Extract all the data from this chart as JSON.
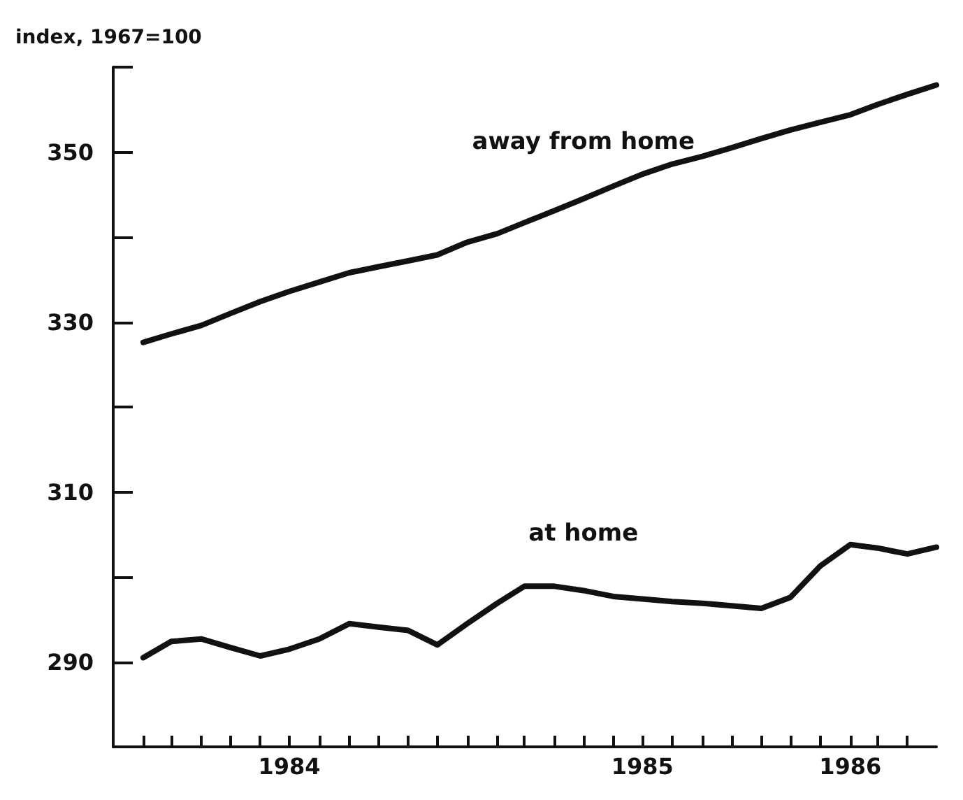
{
  "chart_data": {
    "type": "line",
    "ylabel": "index, 1967=100",
    "x": [
      "1984-02",
      "1984-03",
      "1984-04",
      "1984-05",
      "1984-06",
      "1984-07",
      "1984-08",
      "1984-09",
      "1984-10",
      "1984-11",
      "1984-12",
      "1985-01",
      "1985-02",
      "1985-03",
      "1985-04",
      "1985-05",
      "1985-06",
      "1985-07",
      "1985-08",
      "1985-09",
      "1985-10",
      "1985-11",
      "1985-12",
      "1986-01",
      "1986-02",
      "1986-03",
      "1986-04",
      "1986-05"
    ],
    "series": [
      {
        "name": "away from home",
        "color": "#111111",
        "values": [
          327.6,
          328.6,
          329.6,
          331,
          332.4,
          333.6,
          334.7,
          335.8,
          336.5,
          337.2,
          337.9,
          339.4,
          340.4,
          341.7,
          343.1,
          344.5,
          346,
          347.4,
          348.6,
          349.5,
          350.5,
          351.6,
          352.6,
          353.5,
          354.4,
          355.6,
          356.8,
          357.9
        ]
      },
      {
        "name": "at home",
        "color": "#111111",
        "values": [
          290.5,
          292.4,
          292.7,
          291.7,
          290.7,
          291.5,
          292.7,
          294.5,
          294.1,
          293.7,
          292,
          294.5,
          296.9,
          298.9,
          298.9,
          298.4,
          297.7,
          297.4,
          297.1,
          296.9,
          296.6,
          296.3,
          297.6,
          301.3,
          303.8,
          303.4,
          302.7,
          303.5
        ]
      }
    ],
    "xlim": [
      "1984-01",
      "1986-05"
    ],
    "xticks": [
      {
        "value": "1984-02",
        "label": null
      },
      {
        "value": "1984-03",
        "label": null
      },
      {
        "value": "1984-04",
        "label": null
      },
      {
        "value": "1984-05",
        "label": null
      },
      {
        "value": "1984-06",
        "label": null
      },
      {
        "value": "1984-07",
        "label": "1984"
      },
      {
        "value": "1984-08",
        "label": null
      },
      {
        "value": "1984-09",
        "label": null
      },
      {
        "value": "1984-10",
        "label": null
      },
      {
        "value": "1984-11",
        "label": null
      },
      {
        "value": "1984-12",
        "label": null
      },
      {
        "value": "1985-01",
        "label": null
      },
      {
        "value": "1985-02",
        "label": null
      },
      {
        "value": "1985-03",
        "label": null
      },
      {
        "value": "1985-04",
        "label": null
      },
      {
        "value": "1985-05",
        "label": null
      },
      {
        "value": "1985-06",
        "label": null
      },
      {
        "value": "1985-07",
        "label": "1985"
      },
      {
        "value": "1985-08",
        "label": null
      },
      {
        "value": "1985-09",
        "label": null
      },
      {
        "value": "1985-10",
        "label": null
      },
      {
        "value": "1985-11",
        "label": null
      },
      {
        "value": "1985-12",
        "label": null
      },
      {
        "value": "1986-01",
        "label": null
      },
      {
        "value": "1986-02",
        "label": "1986"
      },
      {
        "value": "1986-03",
        "label": null
      },
      {
        "value": "1986-04",
        "label": null
      }
    ],
    "ylim": [
      280,
      360
    ],
    "yticks": [
      290,
      {
        "value": 300,
        "label": null
      },
      310,
      {
        "value": 320,
        "label": null
      },
      330,
      {
        "value": 340,
        "label": null
      },
      350,
      {
        "value": 360,
        "label": null
      }
    ],
    "grid": false,
    "legend": false,
    "marker": "none",
    "line_style": "solid"
  }
}
